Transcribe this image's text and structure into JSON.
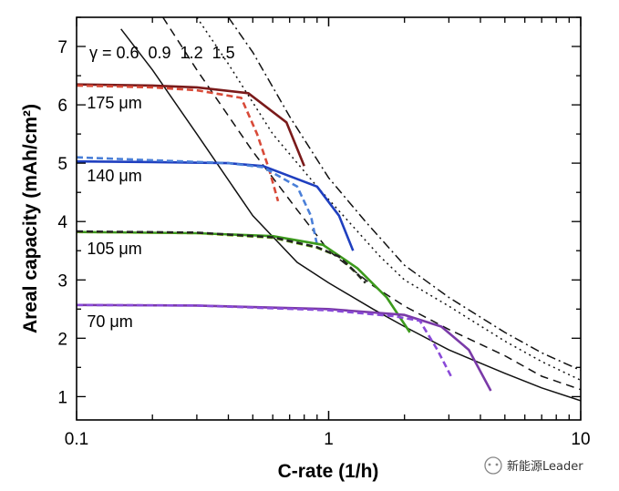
{
  "chart_data": {
    "type": "line",
    "xscale": "log",
    "xlim": [
      0.1,
      10
    ],
    "ylim": [
      0.6,
      7.5
    ],
    "xlabel": "C-rate (1/h)",
    "ylabel": "Areal capacity (mAh/cm²)",
    "x_ticks": [
      {
        "value": 0.1,
        "label": "0.1"
      },
      {
        "value": 1,
        "label": "1"
      },
      {
        "value": 10,
        "label": "10"
      }
    ],
    "y_ticks": [
      {
        "value": 1,
        "label": "1"
      },
      {
        "value": 2,
        "label": "2"
      },
      {
        "value": 3,
        "label": "3"
      },
      {
        "value": 4,
        "label": "4"
      },
      {
        "value": 5,
        "label": "5"
      },
      {
        "value": 6,
        "label": "6"
      },
      {
        "value": 7,
        "label": "7"
      }
    ],
    "gamma_label": "γ = 0.6  0.9  1.2  1.5",
    "thickness_labels": [
      {
        "text": "175 μm",
        "x": 0.11,
        "y": 6.05
      },
      {
        "text": "140 μm",
        "x": 0.11,
        "y": 4.8
      },
      {
        "text": "105 μm",
        "x": 0.11,
        "y": 3.55
      },
      {
        "text": "70 μm",
        "x": 0.11,
        "y": 2.3
      }
    ],
    "limit_curves": [
      {
        "name": "γ = 0.6",
        "style": "solid",
        "x": [
          0.15,
          0.2,
          0.3,
          0.5,
          0.75,
          1.0,
          1.5,
          2,
          3,
          5,
          7,
          10
        ],
        "y": [
          7.3,
          6.6,
          5.5,
          4.1,
          3.3,
          2.95,
          2.5,
          2.2,
          1.8,
          1.4,
          1.15,
          0.93
        ]
      },
      {
        "name": "γ = 0.9",
        "style": "dashed",
        "x": [
          0.22,
          0.3,
          0.5,
          0.75,
          1.0,
          1.5,
          2,
          3,
          5,
          7,
          10
        ],
        "y": [
          7.5,
          6.6,
          5.2,
          4.2,
          3.5,
          2.9,
          2.55,
          2.15,
          1.7,
          1.35,
          1.12
        ]
      },
      {
        "name": "γ = 1.2",
        "style": "dotted",
        "x": [
          0.3,
          0.4,
          0.6,
          0.9,
          1.2,
          1.6,
          2,
          3,
          5,
          7,
          10
        ],
        "y": [
          7.5,
          6.7,
          5.5,
          4.6,
          4.0,
          3.4,
          3.0,
          2.55,
          1.95,
          1.6,
          1.28
        ]
      },
      {
        "name": "γ = 1.5",
        "style": "dashdot",
        "x": [
          0.4,
          0.5,
          0.7,
          1.0,
          1.4,
          2,
          3,
          5,
          7,
          10
        ],
        "y": [
          7.5,
          6.9,
          5.8,
          4.75,
          4.0,
          3.25,
          2.7,
          2.1,
          1.75,
          1.45
        ]
      }
    ],
    "series": [
      {
        "name": "175 μm experiment",
        "color": "#7a1a1a",
        "style": "solid",
        "x": [
          0.1,
          0.2,
          0.3,
          0.48,
          0.68,
          0.8
        ],
        "y": [
          6.35,
          6.33,
          6.3,
          6.2,
          5.7,
          4.95
        ]
      },
      {
        "name": "175 μm model",
        "color": "#d84a38",
        "style": "dashed",
        "x": [
          0.1,
          0.2,
          0.3,
          0.45,
          0.52,
          0.58,
          0.63
        ],
        "y": [
          6.33,
          6.3,
          6.25,
          6.12,
          5.5,
          4.9,
          4.35
        ]
      },
      {
        "name": "140 μm experiment",
        "color": "#1f3fbf",
        "style": "solid",
        "x": [
          0.1,
          0.2,
          0.4,
          0.55,
          0.9,
          1.1,
          1.25
        ],
        "y": [
          5.03,
          5.02,
          5.0,
          4.95,
          4.6,
          4.1,
          3.5
        ]
      },
      {
        "name": "140 μm model",
        "color": "#4a7fd8",
        "style": "dashed",
        "x": [
          0.1,
          0.2,
          0.4,
          0.55,
          0.75,
          0.85,
          0.9
        ],
        "y": [
          5.1,
          5.05,
          5.0,
          4.93,
          4.6,
          4.1,
          3.6
        ]
      },
      {
        "name": "105 μm experiment",
        "color": "#3c9a1c",
        "style": "solid",
        "x": [
          0.1,
          0.3,
          0.6,
          0.95,
          1.3,
          1.7,
          2.1
        ],
        "y": [
          3.82,
          3.8,
          3.75,
          3.6,
          3.2,
          2.7,
          2.1
        ]
      },
      {
        "name": "105 μm model",
        "color": "#8ed22c",
        "style": "dashed",
        "x": [
          0.1,
          0.3,
          0.6,
          0.9,
          1.1,
          1.3,
          1.4
        ],
        "y": [
          3.82,
          3.8,
          3.72,
          3.55,
          3.4,
          3.1,
          2.95
        ]
      },
      {
        "name": "105 μm reference",
        "color": "#222222",
        "style": "dashed",
        "x": [
          0.1,
          0.3,
          0.6,
          0.9,
          1.1,
          1.3,
          1.4
        ],
        "y": [
          3.83,
          3.81,
          3.73,
          3.56,
          3.4,
          3.1,
          2.95
        ]
      },
      {
        "name": "70 μm experiment",
        "color": "#7a3aa8",
        "style": "solid",
        "x": [
          0.1,
          0.3,
          1.0,
          2.0,
          2.8,
          3.6,
          4.4
        ],
        "y": [
          2.57,
          2.56,
          2.5,
          2.4,
          2.2,
          1.8,
          1.1
        ]
      },
      {
        "name": "70 μm model",
        "color": "#8a4ad8",
        "style": "dashed",
        "x": [
          0.1,
          0.3,
          1.0,
          1.8,
          2.3,
          2.7,
          3.1
        ],
        "y": [
          2.57,
          2.56,
          2.48,
          2.38,
          2.3,
          1.8,
          1.3
        ]
      }
    ]
  },
  "watermark": {
    "text": "新能源Leader"
  }
}
